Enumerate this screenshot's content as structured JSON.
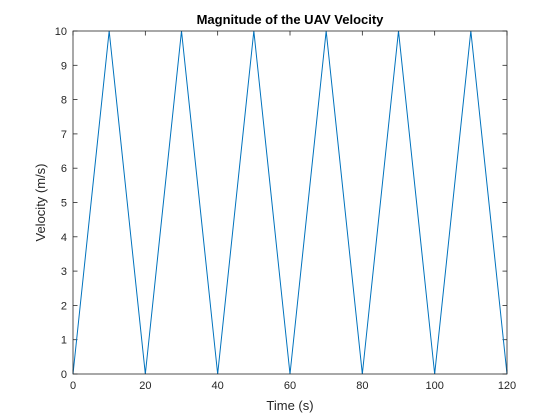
{
  "chart_data": {
    "type": "line",
    "title": "Magnitude of the UAV Velocity",
    "xlabel": "Time (s)",
    "ylabel": "Velocity (m/s)",
    "xlim": [
      0,
      120
    ],
    "ylim": [
      0,
      10
    ],
    "xticks": [
      0,
      20,
      40,
      60,
      80,
      100,
      120
    ],
    "yticks": [
      0,
      1,
      2,
      3,
      4,
      5,
      6,
      7,
      8,
      9,
      10
    ],
    "grid": false,
    "series": [
      {
        "color": "#0072BD",
        "x": [
          0,
          10,
          20,
          30,
          40,
          50,
          60,
          70,
          80,
          90,
          100,
          110,
          120
        ],
        "y": [
          0,
          10,
          0,
          10,
          0,
          10,
          0,
          10,
          0,
          10,
          0,
          10,
          0
        ]
      }
    ]
  }
}
